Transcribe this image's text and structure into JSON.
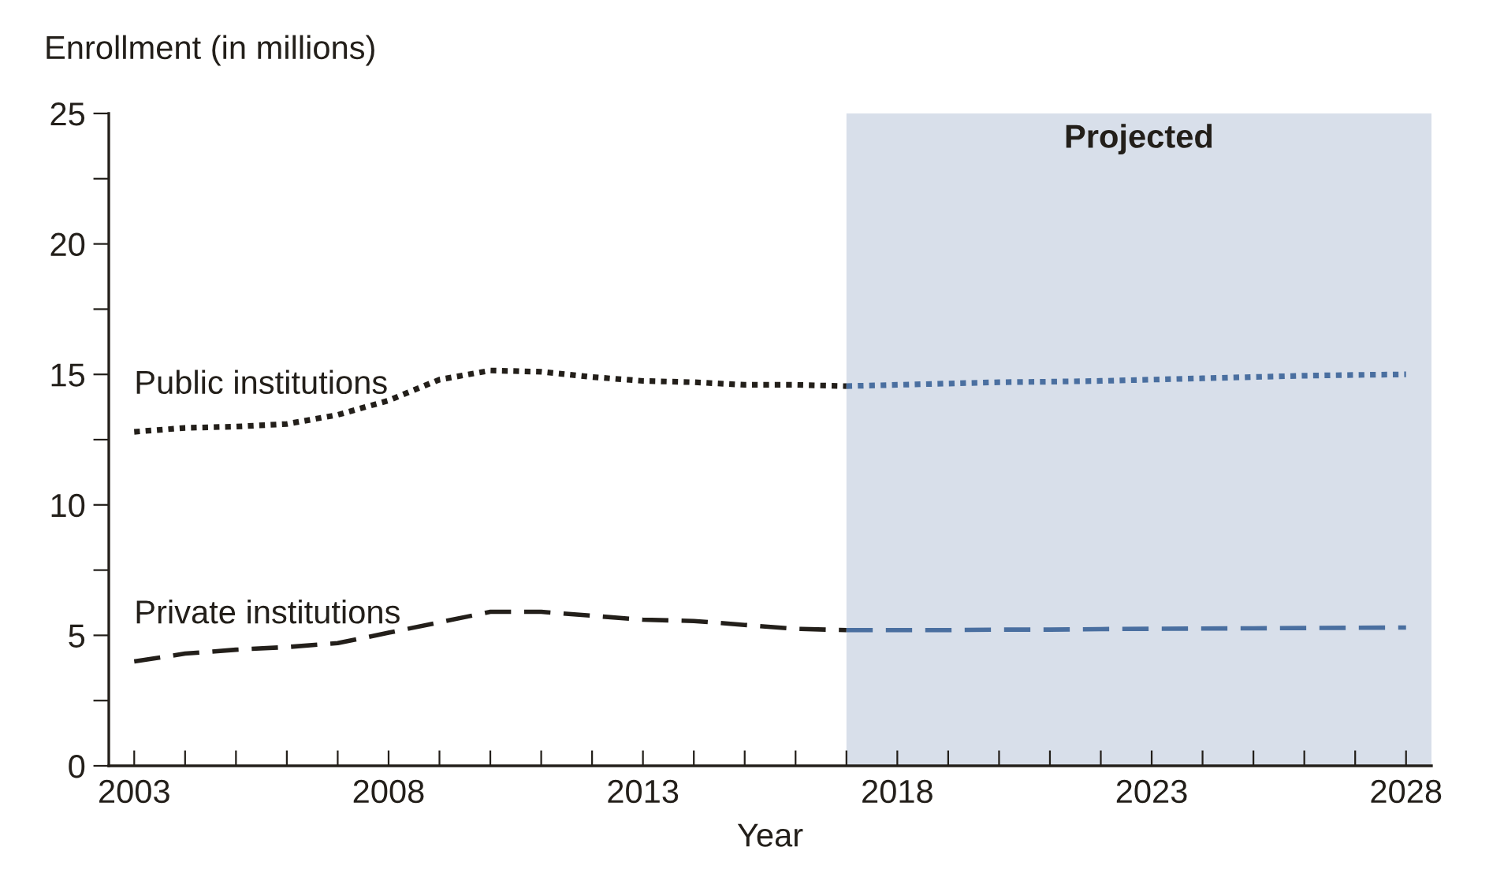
{
  "chart_data": {
    "type": "line",
    "xlabel": "Year",
    "ylabel": "Enrollment (in millions)",
    "x": [
      2003,
      2004,
      2005,
      2006,
      2007,
      2008,
      2009,
      2010,
      2011,
      2012,
      2013,
      2014,
      2015,
      2016,
      2017
    ],
    "series": [
      {
        "name": "Public institutions",
        "color": "#231f1a",
        "line_style": "dotted",
        "values": [
          12.8,
          12.95,
          13.0,
          13.1,
          13.45,
          14.0,
          14.8,
          15.15,
          15.1,
          14.9,
          14.75,
          14.7,
          14.6,
          14.6,
          14.55
        ]
      },
      {
        "name": "Private institutions",
        "color": "#231f1a",
        "line_style": "dashed",
        "values": [
          4.0,
          4.3,
          4.45,
          4.55,
          4.7,
          5.1,
          5.5,
          5.9,
          5.9,
          5.75,
          5.6,
          5.55,
          5.4,
          5.25,
          5.2
        ]
      },
      {
        "color": "#4a6fa0",
        "line_style": "dotted",
        "x": [
          2017,
          2018,
          2019,
          2020,
          2021,
          2022,
          2023,
          2024,
          2025,
          2026,
          2027,
          2028
        ],
        "values": [
          14.55,
          14.6,
          14.65,
          14.7,
          14.72,
          14.75,
          14.8,
          14.85,
          14.9,
          14.95,
          14.98,
          15.0
        ]
      },
      {
        "color": "#4a6fa0",
        "line_style": "dashed",
        "x": [
          2017,
          2018,
          2019,
          2020,
          2021,
          2022,
          2023,
          2024,
          2025,
          2026,
          2027,
          2028
        ],
        "values": [
          5.2,
          5.2,
          5.2,
          5.22,
          5.22,
          5.24,
          5.25,
          5.26,
          5.27,
          5.28,
          5.29,
          5.3
        ]
      }
    ],
    "bands": [
      {
        "axis": "x",
        "from": 2017,
        "to": 2028.5,
        "label": "Projected",
        "color": "#d8dfea"
      }
    ],
    "xlim": [
      2002.5,
      2028.5
    ],
    "xticks": [
      2003,
      {
        "value": 2004,
        "label": null
      },
      {
        "value": 2005,
        "label": null
      },
      {
        "value": 2006,
        "label": null
      },
      {
        "value": 2007,
        "label": null
      },
      2008,
      {
        "value": 2009,
        "label": null
      },
      {
        "value": 2010,
        "label": null
      },
      {
        "value": 2011,
        "label": null
      },
      {
        "value": 2012,
        "label": null
      },
      2013,
      {
        "value": 2014,
        "label": null
      },
      {
        "value": 2015,
        "label": null
      },
      {
        "value": 2016,
        "label": null
      },
      {
        "value": 2017,
        "label": null
      },
      2018,
      {
        "value": 2019,
        "label": null
      },
      {
        "value": 2020,
        "label": null
      },
      {
        "value": 2021,
        "label": null
      },
      {
        "value": 2022,
        "label": null
      },
      2023,
      {
        "value": 2024,
        "label": null
      },
      {
        "value": 2025,
        "label": null
      },
      {
        "value": 2026,
        "label": null
      },
      {
        "value": 2027,
        "label": null
      },
      2028
    ],
    "ylim": [
      0,
      25
    ],
    "yticks": [
      0,
      {
        "value": 2.5,
        "label": null
      },
      5,
      {
        "value": 7.5,
        "label": null
      },
      10,
      {
        "value": 12.5,
        "label": null
      },
      15,
      {
        "value": 17.5,
        "label": null
      },
      20,
      {
        "value": 22.5,
        "label": null
      },
      25
    ],
    "grid": false,
    "legend": false
  }
}
